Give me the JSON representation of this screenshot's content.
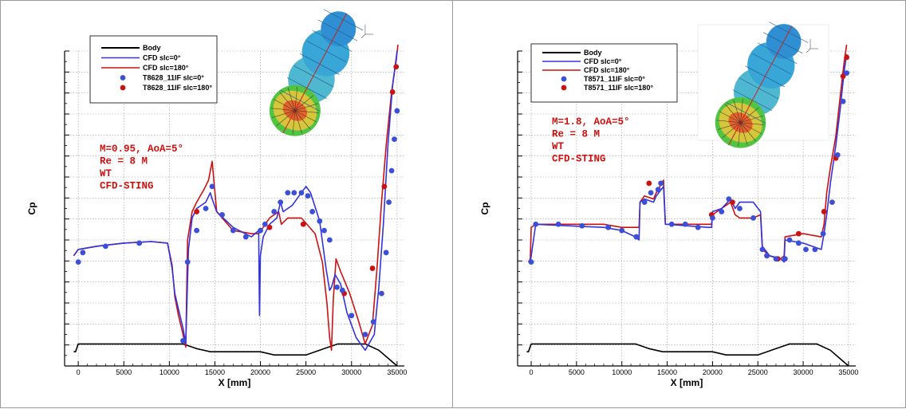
{
  "colors": {
    "body": "#000000",
    "cfd0": "#3333dd",
    "cfd180": "#cc1111",
    "exp0": "#3b4fd8",
    "exp180": "#cc1111",
    "annotation": "#cc1111"
  },
  "chart_data": [
    {
      "type": "line",
      "xlabel": "X [mm]",
      "ylabel": "Cp",
      "xlim": [
        -1500,
        35800
      ],
      "ylim": [
        0,
        1
      ],
      "x_ticks": [
        "0",
        "5000",
        "10000",
        "15000",
        "20000",
        "25000",
        "30000",
        "35000"
      ],
      "y_ticks_labeled": false,
      "grid": true,
      "legend_position": "top-left",
      "legend": {
        "body": "Body",
        "cfd0": "CFD slc=0°",
        "cfd180": "CFD slc=180°",
        "exp0": "T8628_11IF slc=0°",
        "exp180": "T8628_11IF slc=180°"
      },
      "annotation": [
        "M=0.95, AoA=5°",
        "Re = 8 M",
        "WT",
        "CFD-STING"
      ],
      "series": [
        {
          "key": "body",
          "style": "line",
          "x": [
            -500,
            -300,
            0,
            11500,
            13000,
            14500,
            16000,
            20000,
            21500,
            25000,
            27000,
            28500,
            31500,
            33000,
            34000,
            35000
          ],
          "y": [
            0.045,
            0.045,
            0.07,
            0.07,
            0.055,
            0.045,
            0.045,
            0.045,
            0.035,
            0.035,
            0.055,
            0.07,
            0.07,
            0.05,
            0.025,
            0.0
          ]
        },
        {
          "key": "cfd0",
          "style": "line",
          "x": [
            -500,
            0,
            2000,
            5000,
            8000,
            9800,
            10300,
            10600,
            11000,
            11500,
            11800,
            12100,
            12500,
            13000,
            14000,
            14500,
            14700,
            15200,
            17000,
            19000,
            19800,
            19900,
            20000,
            20300,
            21000,
            21800,
            22200,
            22500,
            23500,
            24500,
            25000,
            25500,
            26500,
            27200,
            27600,
            27800,
            28200,
            28800,
            29500,
            30500,
            31500,
            32500,
            33000,
            33500,
            34000,
            34500,
            35000
          ],
          "y": [
            0.35,
            0.37,
            0.38,
            0.39,
            0.395,
            0.39,
            0.31,
            0.23,
            0.18,
            0.12,
            0.07,
            0.37,
            0.47,
            0.5,
            0.52,
            0.55,
            0.53,
            0.49,
            0.44,
            0.41,
            0.43,
            0.16,
            0.35,
            0.41,
            0.45,
            0.47,
            0.52,
            0.49,
            0.51,
            0.55,
            0.57,
            0.55,
            0.46,
            0.31,
            0.24,
            0.25,
            0.29,
            0.26,
            0.17,
            0.09,
            0.05,
            0.1,
            0.25,
            0.45,
            0.7,
            0.89,
            1.0
          ]
        },
        {
          "key": "cfd180",
          "style": "line",
          "x": [
            -500,
            0,
            2000,
            5000,
            8000,
            9800,
            10300,
            10600,
            11000,
            11500,
            11800,
            12000,
            12500,
            13000,
            13800,
            14300,
            14700,
            15200,
            17000,
            19000,
            19800,
            20300,
            21000,
            22000,
            22300,
            23000,
            24500,
            26000,
            26800,
            27300,
            27600,
            27800,
            28000,
            28300,
            28800,
            29800,
            30800,
            31500,
            32300,
            32800,
            33300,
            33800,
            34400,
            34900,
            35100
          ],
          "y": [
            0.35,
            0.37,
            0.38,
            0.39,
            0.395,
            0.39,
            0.32,
            0.22,
            0.16,
            0.1,
            0.06,
            0.4,
            0.49,
            0.52,
            0.56,
            0.59,
            0.65,
            0.49,
            0.43,
            0.42,
            0.42,
            0.44,
            0.47,
            0.49,
            0.45,
            0.47,
            0.47,
            0.42,
            0.33,
            0.2,
            0.09,
            0.05,
            0.21,
            0.34,
            0.3,
            0.23,
            0.14,
            0.07,
            0.13,
            0.31,
            0.52,
            0.7,
            0.87,
            0.97,
            1.02
          ]
        },
        {
          "key": "exp0",
          "style": "marker",
          "x": [
            0,
            500,
            3000,
            6700,
            11500,
            12000,
            13000,
            14000,
            14700,
            15800,
            17000,
            18400,
            20000,
            20500,
            21500,
            22200,
            23000,
            23700,
            24500,
            25200,
            25700,
            26500,
            27000,
            27600,
            28400,
            29000,
            30000,
            31500,
            32400,
            33300,
            33800,
            34100,
            34400,
            34700,
            35000
          ],
          "y": [
            0.33,
            0.36,
            0.38,
            0.39,
            0.08,
            0.33,
            0.43,
            0.5,
            0.57,
            0.48,
            0.43,
            0.41,
            0.43,
            0.45,
            0.49,
            0.52,
            0.55,
            0.55,
            0.55,
            0.54,
            0.49,
            0.46,
            0.43,
            0.4,
            0.25,
            0.24,
            0.16,
            0.1,
            0.14,
            0.23,
            0.36,
            0.52,
            0.62,
            0.72,
            0.81
          ]
        },
        {
          "key": "exp180",
          "style": "marker",
          "x": [
            13000,
            21000,
            24700,
            29200,
            32300,
            33600,
            34500,
            34900
          ],
          "y": [
            0.49,
            0.44,
            0.45,
            0.23,
            0.31,
            0.57,
            0.87,
            0.95
          ]
        }
      ]
    },
    {
      "type": "line",
      "xlabel": "X [mm]",
      "ylabel": "Cp",
      "xlim": [
        -1500,
        35800
      ],
      "ylim": [
        0,
        1
      ],
      "x_ticks": [
        "0",
        "5000",
        "10000",
        "15000",
        "20000",
        "25000",
        "30000",
        "35000"
      ],
      "y_ticks_labeled": false,
      "grid": true,
      "legend_position": "top-left",
      "legend": {
        "body": "Body",
        "cfd0": "CFD slc=0°",
        "cfd180": "CFD slc=180°",
        "exp0": "T8571_11IF slc=0°",
        "exp180": "T8571_11IF slc=180°"
      },
      "annotation": [
        "M=1.8, AoA=5°",
        "Re = 8 M",
        "WT",
        "CFD-STING"
      ],
      "series": [
        {
          "key": "body",
          "style": "line",
          "x": [
            -500,
            -300,
            0,
            11500,
            13000,
            14500,
            16000,
            20000,
            21500,
            25000,
            27000,
            28500,
            31500,
            33000,
            34000,
            35000
          ],
          "y": [
            0.045,
            0.045,
            0.07,
            0.07,
            0.055,
            0.045,
            0.045,
            0.045,
            0.035,
            0.035,
            0.055,
            0.07,
            0.07,
            0.05,
            0.025,
            0.0
          ]
        },
        {
          "key": "cfd0",
          "style": "line",
          "x": [
            -300,
            -100,
            0,
            500,
            4000,
            8000,
            10000,
            11500,
            11900,
            12000,
            12500,
            13500,
            13800,
            14600,
            14800,
            15000,
            19500,
            19900,
            20000,
            21000,
            22000,
            22500,
            23000,
            24500,
            25300,
            25500,
            26300,
            27500,
            27900,
            28000,
            30000,
            32000,
            32300,
            32600,
            33000,
            33600,
            34100,
            34500,
            34800
          ],
          "y": [
            0.33,
            0.33,
            0.35,
            0.45,
            0.445,
            0.44,
            0.43,
            0.41,
            0.4,
            0.52,
            0.53,
            0.52,
            0.54,
            0.57,
            0.45,
            0.45,
            0.44,
            0.44,
            0.49,
            0.5,
            0.53,
            0.5,
            0.52,
            0.52,
            0.49,
            0.38,
            0.35,
            0.34,
            0.33,
            0.4,
            0.39,
            0.37,
            0.42,
            0.48,
            0.58,
            0.7,
            0.82,
            0.93,
            0.99
          ]
        },
        {
          "key": "cfd180",
          "style": "line",
          "x": [
            -300,
            -100,
            0,
            500,
            4000,
            8000,
            10000,
            11500,
            11900,
            12000,
            12500,
            13500,
            13800,
            14600,
            14800,
            15000,
            19500,
            19900,
            20000,
            21000,
            22000,
            22500,
            23000,
            24500,
            25300,
            25500,
            26300,
            27500,
            27900,
            28000,
            30000,
            32000,
            32300,
            32600,
            33000,
            33600,
            34100,
            34500,
            34800
          ],
          "y": [
            0.33,
            0.34,
            0.44,
            0.45,
            0.45,
            0.45,
            0.44,
            0.44,
            0.44,
            0.52,
            0.54,
            0.53,
            0.55,
            0.59,
            0.45,
            0.45,
            0.45,
            0.45,
            0.48,
            0.5,
            0.52,
            0.48,
            0.47,
            0.47,
            0.48,
            0.37,
            0.35,
            0.34,
            0.35,
            0.41,
            0.42,
            0.41,
            0.45,
            0.55,
            0.63,
            0.73,
            0.86,
            0.96,
            1.02
          ]
        },
        {
          "key": "exp0",
          "style": "marker",
          "x": [
            0,
            500,
            3000,
            5600,
            8500,
            10000,
            11600,
            12500,
            13200,
            14000,
            14300,
            15500,
            17000,
            18400,
            20000,
            21000,
            21800,
            23000,
            24500,
            25500,
            26000,
            27000,
            28000,
            28500,
            29500,
            30300,
            31300,
            32200,
            33200,
            33800,
            34400,
            34800
          ],
          "y": [
            0.33,
            0.45,
            0.45,
            0.445,
            0.44,
            0.43,
            0.41,
            0.52,
            0.55,
            0.56,
            0.58,
            0.45,
            0.45,
            0.44,
            0.47,
            0.49,
            0.53,
            0.5,
            0.47,
            0.37,
            0.35,
            0.34,
            0.34,
            0.4,
            0.39,
            0.37,
            0.37,
            0.42,
            0.52,
            0.67,
            0.84,
            0.93
          ]
        },
        {
          "key": "exp180",
          "style": "marker",
          "x": [
            13000,
            19900,
            22200,
            26000,
            27200,
            29500,
            32300,
            33600,
            34400,
            34800
          ],
          "y": [
            0.58,
            0.48,
            0.52,
            0.35,
            0.34,
            0.42,
            0.49,
            0.66,
            0.92,
            0.98
          ]
        }
      ]
    }
  ]
}
